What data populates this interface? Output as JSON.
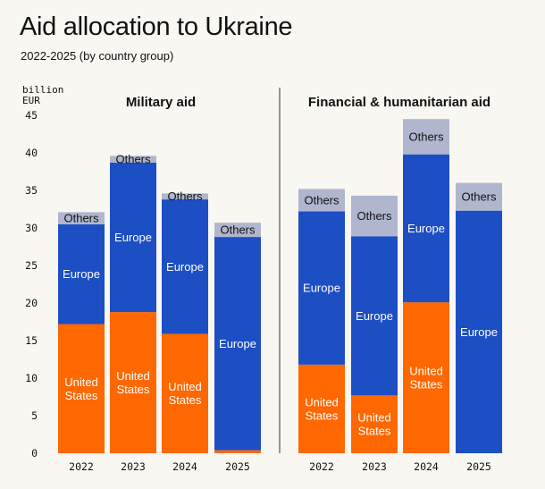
{
  "title": "Aid allocation to Ukraine",
  "subtitle": "2022-2025 (by country group)",
  "chart_data": {
    "type": "bar",
    "stacked": true,
    "unit_label": [
      "billion",
      "EUR"
    ],
    "ylim": [
      0,
      45
    ],
    "yticks": [
      0,
      5,
      10,
      15,
      20,
      25,
      30,
      35,
      40,
      45
    ],
    "grid": false,
    "colors": {
      "United States": "#ff6700",
      "Europe": "#1c4ec4",
      "Others": "#b1b6cf"
    },
    "panels": [
      {
        "title": "Military aid",
        "categories": [
          "2022",
          "2023",
          "2024",
          "2025"
        ],
        "series": [
          {
            "name": "United States",
            "values": [
              17.2,
              18.8,
              15.9,
              0.4
            ]
          },
          {
            "name": "Europe",
            "values": [
              13.3,
              19.9,
              17.9,
              28.4
            ]
          },
          {
            "name": "Others",
            "values": [
              1.6,
              0.9,
              0.8,
              1.9
            ]
          }
        ],
        "labels": [
          {
            "name": "United States",
            "text": [
              "United\nStates",
              "United\nStates",
              "United\nStates",
              ""
            ]
          },
          {
            "name": "Europe",
            "text": [
              "Europe",
              "Europe",
              "Europe",
              "Europe"
            ]
          },
          {
            "name": "Others",
            "text": [
              "Others",
              "Others",
              "Others",
              "Others"
            ]
          }
        ]
      },
      {
        "title": "Financial & humanitarian aid",
        "categories": [
          "2022",
          "2023",
          "2024",
          "2025"
        ],
        "series": [
          {
            "name": "United States",
            "values": [
              11.8,
              7.7,
              20.1,
              0
            ]
          },
          {
            "name": "Europe",
            "values": [
              20.4,
              21.2,
              19.7,
              32.3
            ]
          },
          {
            "name": "Others",
            "values": [
              3.0,
              5.4,
              4.7,
              3.7
            ]
          }
        ],
        "labels": [
          {
            "name": "United States",
            "text": [
              "United\nStates",
              "United\nStates",
              "United\nStates",
              ""
            ]
          },
          {
            "name": "Europe",
            "text": [
              "Europe",
              "Europe",
              "Europe",
              "Europe"
            ]
          },
          {
            "name": "Others",
            "text": [
              "Others",
              "Others",
              "Others",
              "Others"
            ]
          }
        ]
      }
    ]
  }
}
